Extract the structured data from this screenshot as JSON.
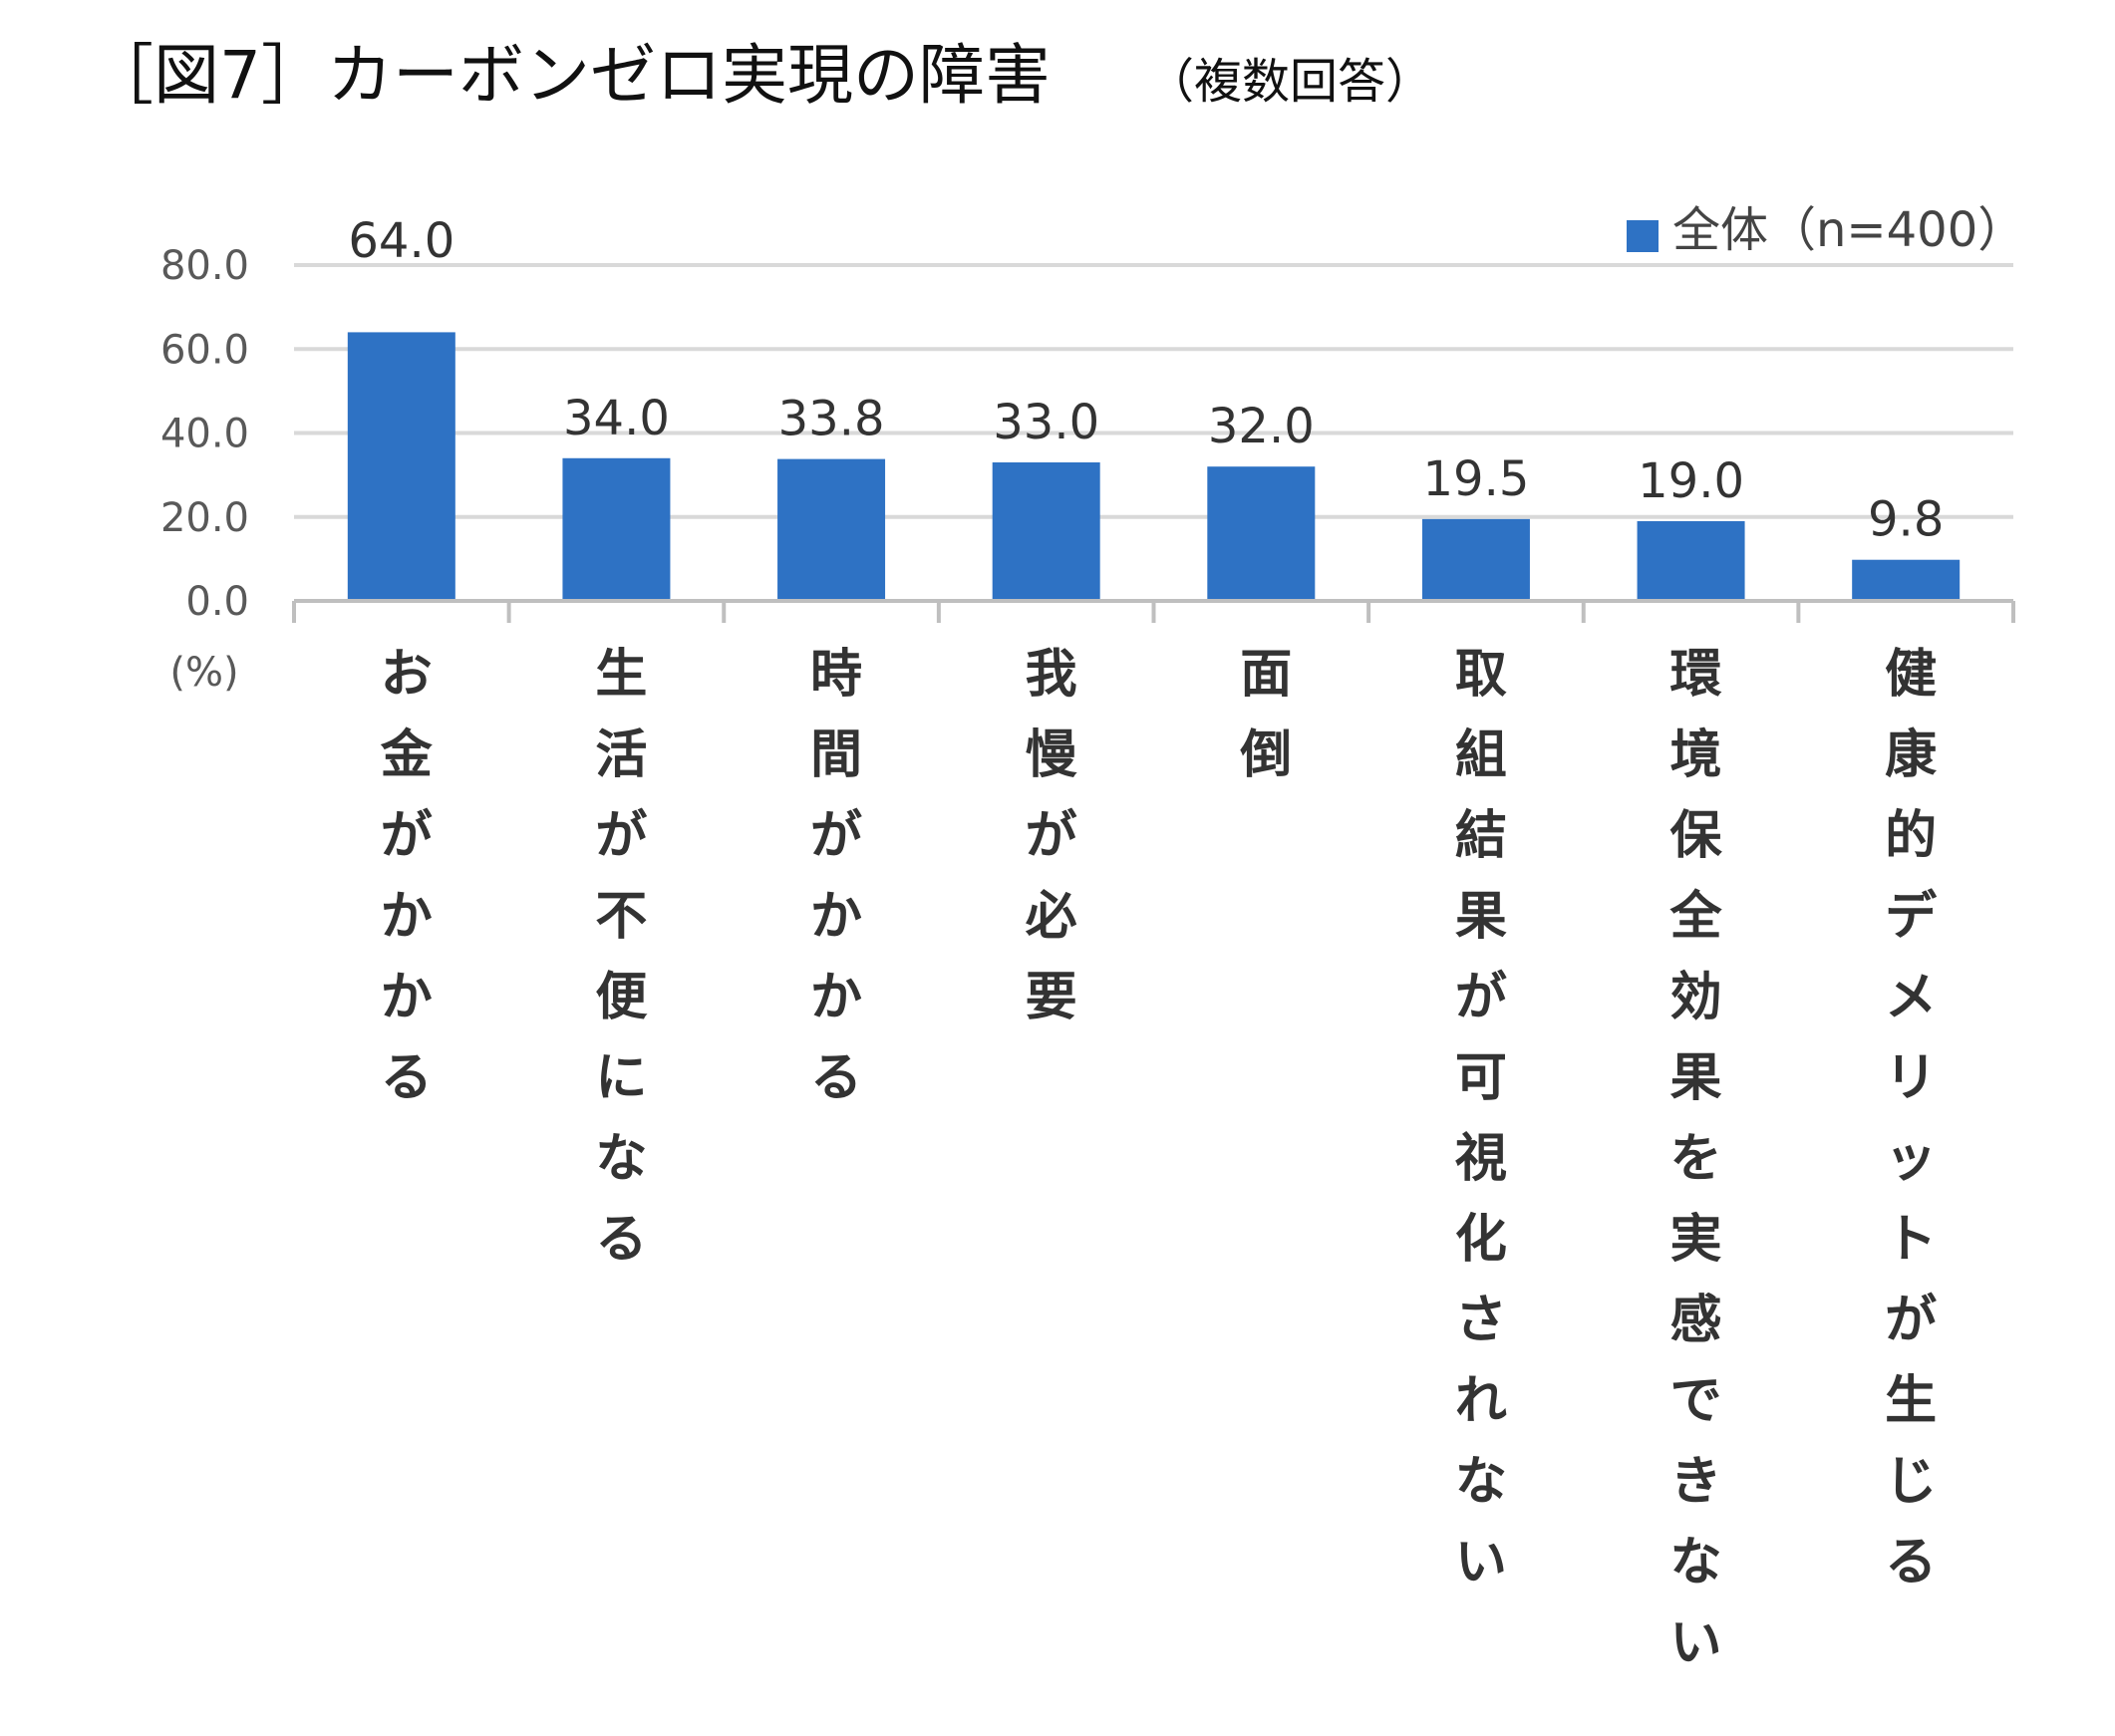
{
  "title": "［図7］カーボンゼロ実現の障害",
  "subtitle": "（複数回答）",
  "unit_label": "(%)",
  "colors": {
    "bar": "#2e72c4",
    "grid": "#d9d9d9",
    "axis": "#bfbfbf"
  },
  "chart_data": {
    "type": "bar",
    "title": "［図7］カーボンゼロ実現の障害",
    "subtitle": "（複数回答）",
    "categories": [
      "お金がかかる",
      "生活が不便になる",
      "時間がかかる",
      "我慢が必要",
      "面倒",
      "取組結果が可視化されない",
      "環境保全効果を実感できない",
      "健康的デメリットが生じる"
    ],
    "series": [
      {
        "name": "全体（n=400）",
        "values": [
          64.0,
          34.0,
          33.8,
          33.0,
          32.0,
          19.5,
          19.0,
          9.8
        ],
        "color": "#2e72c4"
      }
    ],
    "yticks": [
      "0.0",
      "20.0",
      "40.0",
      "60.0",
      "80.0"
    ],
    "ylim": [
      0,
      80
    ],
    "ylabel": "(%)",
    "grid": true,
    "legend": "top-right"
  }
}
